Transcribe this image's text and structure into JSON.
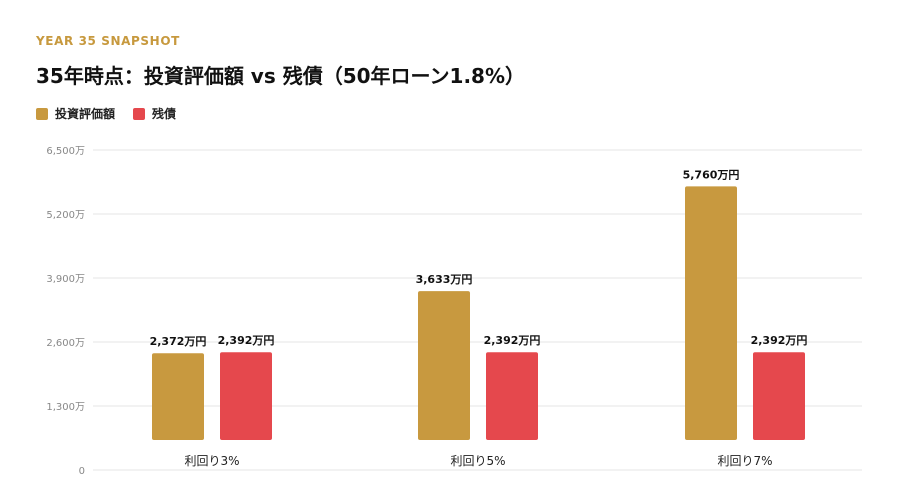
{
  "header": {
    "eyebrow": "YEAR 35 SNAPSHOT",
    "title": "35年時点：投資評価額 vs 残債（50年ローン1.8%）"
  },
  "colors": {
    "accent": "#c7993e",
    "investment": "#c8993f",
    "debt": "#e5484d",
    "grid": "#e6e6e6",
    "tick": "#888888"
  },
  "chart_data": {
    "type": "bar",
    "categories": [
      "利回り3%",
      "利回り5%",
      "利回り7%"
    ],
    "series": [
      {
        "name": "投資評価額",
        "color": "#c8993f",
        "values": [
          2372,
          3633,
          5760
        ],
        "labels": [
          "2,372万円",
          "3,633万円",
          "5,760万円"
        ]
      },
      {
        "name": "残債",
        "color": "#e5484d",
        "values": [
          2392,
          2392,
          2392
        ],
        "labels": [
          "2,392万円",
          "2,392万円",
          "2,392万円"
        ]
      }
    ],
    "yticks": [
      0,
      1300,
      2600,
      3900,
      5200,
      6500
    ],
    "ytick_labels": [
      "0",
      "1,300万",
      "2,600万",
      "3,900万",
      "5,200万",
      "6,500万"
    ],
    "ylim": [
      0,
      6500
    ],
    "grid": true,
    "legend": "top-left"
  }
}
